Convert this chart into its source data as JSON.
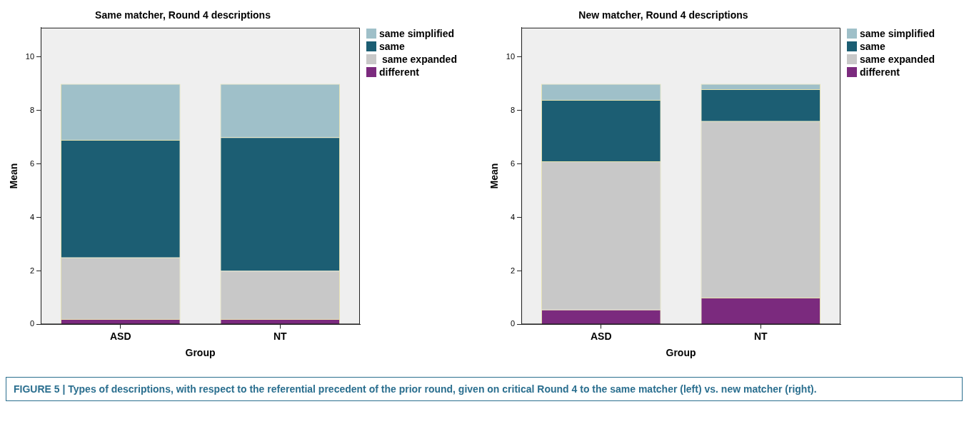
{
  "chart_data": [
    {
      "type": "bar",
      "title": "Same matcher, Round 4 descriptions",
      "xlabel": "Group",
      "ylabel": "Mean",
      "categories": [
        "ASD",
        "NT"
      ],
      "stacked": true,
      "ylim": [
        0,
        11.1
      ],
      "yticks": [
        0,
        2,
        4,
        6,
        8,
        10
      ],
      "grid": false,
      "legend": "top right",
      "series": [
        {
          "name": "different",
          "color": "#7b2a7e",
          "values": [
            0.2,
            0.2
          ]
        },
        {
          "name": " same expanded",
          "color": "#c8c8c8",
          "values": [
            2.3,
            1.8
          ]
        },
        {
          "name": "same",
          "color": "#1c5e73",
          "values": [
            4.4,
            5.0
          ]
        },
        {
          "name": "same simplified",
          "color": "#9fc0c9",
          "values": [
            2.1,
            2.0
          ]
        }
      ],
      "annotations": [
        "FIGURE 5 | Types of descriptions, with respect to the referential precedent of the prior round, given on critical Round 4 to the same matcher (left) vs. new matcher (right)."
      ]
    },
    {
      "type": "bar",
      "title": "New matcher, Round 4 descriptions",
      "xlabel": "Group",
      "ylabel": "Mean",
      "categories": [
        "ASD",
        "NT"
      ],
      "stacked": true,
      "ylim": [
        0,
        11.1
      ],
      "yticks": [
        0,
        2,
        4,
        6,
        8,
        10
      ],
      "grid": false,
      "legend": "top right",
      "series": [
        {
          "name": "different",
          "color": "#7b2a7e",
          "values": [
            0.55,
            1.0
          ]
        },
        {
          "name": "same expanded",
          "color": "#c8c8c8",
          "values": [
            5.55,
            6.6
          ]
        },
        {
          "name": "same",
          "color": "#1c5e73",
          "values": [
            2.3,
            1.2
          ]
        },
        {
          "name": "same simplified",
          "color": "#9fc0c9",
          "values": [
            0.6,
            0.2
          ]
        }
      ]
    }
  ]
}
